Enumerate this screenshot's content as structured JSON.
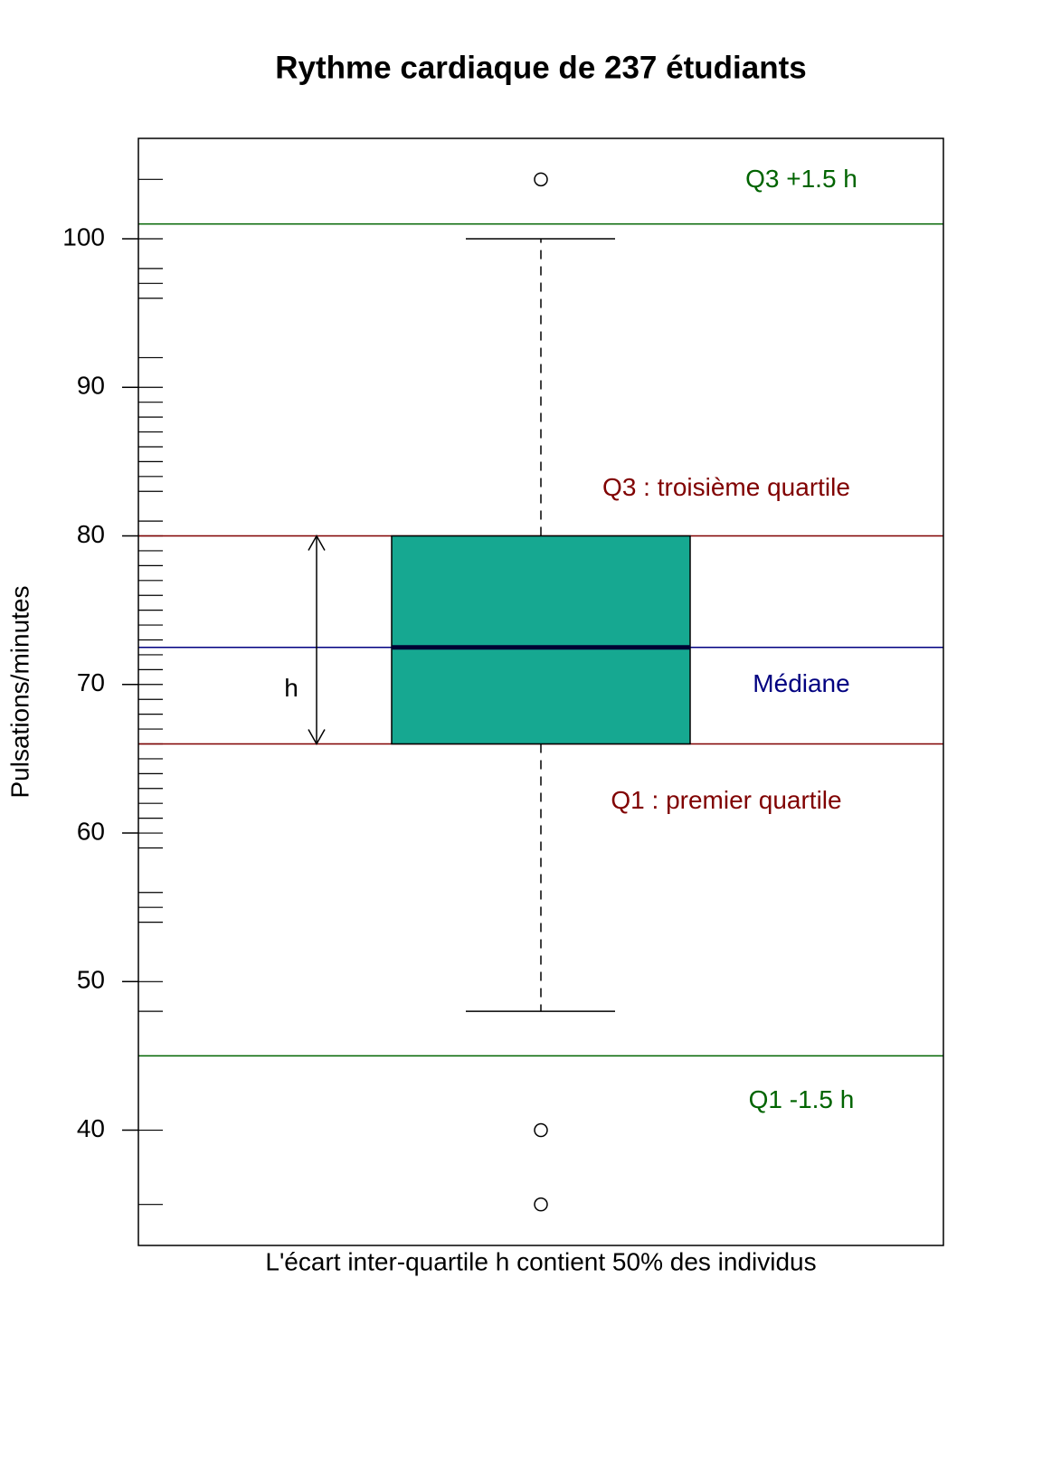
{
  "chart_data": {
    "type": "box",
    "title": "Rythme cardiaque de 237 étudiants",
    "ylabel": "Pulsations/minutes",
    "xlabel": "L'écart inter-quartile h contient 50% des individus",
    "ylim": [
      32.24,
      106.76
    ],
    "yticks": [
      40,
      50,
      60,
      70,
      80,
      90,
      100
    ],
    "box": {
      "min": 48,
      "q1": 66,
      "median": 72.5,
      "q3": 80,
      "max": 100,
      "outliers": [
        104,
        40,
        35
      ],
      "color": "#16a891",
      "median_color": "#000033"
    },
    "rug": [
      104,
      100,
      98,
      97,
      96,
      92,
      90,
      89,
      88,
      87,
      86,
      85,
      84,
      83,
      81,
      80,
      79,
      78,
      77,
      76,
      75,
      74,
      73,
      72,
      71,
      70,
      69,
      68,
      67,
      66,
      65,
      64,
      63,
      62,
      61,
      60,
      59,
      56,
      55,
      54,
      50,
      48,
      40,
      35
    ],
    "reference_lines": [
      {
        "label": "Q3 +1.5 h",
        "value": 101,
        "color": "#006400"
      },
      {
        "label": "Q3 : troisième quartile",
        "value": 80,
        "color": "#800000"
      },
      {
        "label": "Médiane",
        "value": 72.5,
        "color": "#000080"
      },
      {
        "label": "Q1 : premier quartile",
        "value": 66,
        "color": "#800000"
      },
      {
        "label": "Q1 -1.5 h",
        "value": 45,
        "color": "#006400"
      }
    ],
    "iqr_label": "h"
  }
}
